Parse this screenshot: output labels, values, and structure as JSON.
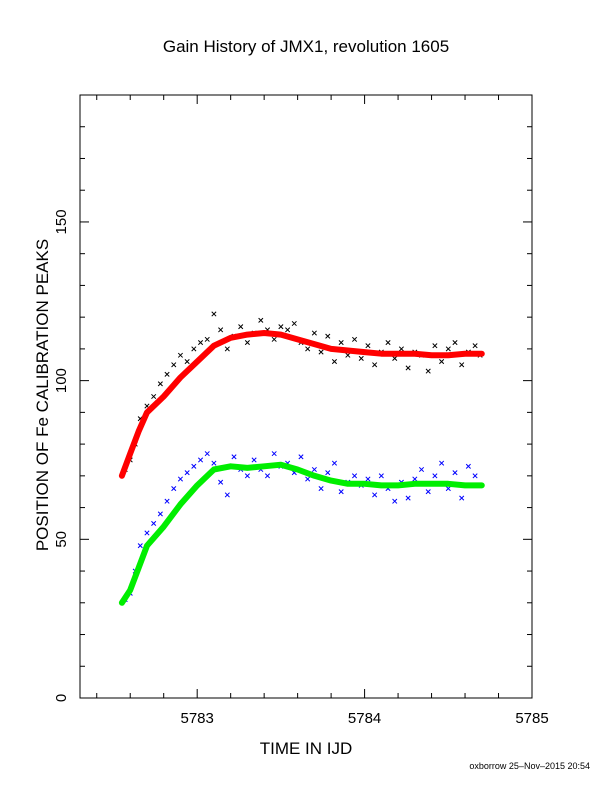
{
  "chart_data": {
    "type": "scatter",
    "title": "Gain History of JMX1, revolution 1605",
    "xlabel": "TIME IN IJD",
    "ylabel": "POSITION OF Fe CALIBRATION PEAKS",
    "xlim": [
      5782.3,
      5785.0
    ],
    "ylim": [
      0,
      190
    ],
    "x_ticks": [
      5783,
      5784,
      5785
    ],
    "x_tick_labels": [
      "5783",
      "5784",
      "5785"
    ],
    "y_ticks": [
      0,
      50,
      100,
      150
    ],
    "y_tick_labels": [
      "0",
      "50",
      "100",
      "150"
    ],
    "grid": false,
    "legend": "none",
    "footer": "oxborrow 25–Nov–2015 20:54",
    "series": [
      {
        "marker": "x",
        "color": "#000000",
        "x": [
          5782.57,
          5782.6,
          5782.63,
          5782.66,
          5782.7,
          5782.74,
          5782.78,
          5782.82,
          5782.86,
          5782.9,
          5782.94,
          5782.98,
          5783.02,
          5783.06,
          5783.1,
          5783.14,
          5783.18,
          5783.22,
          5783.26,
          5783.3,
          5783.34,
          5783.38,
          5783.42,
          5783.46,
          5783.5,
          5783.54,
          5783.58,
          5783.62,
          5783.66,
          5783.7,
          5783.74,
          5783.78,
          5783.82,
          5783.86,
          5783.9,
          5783.94,
          5783.98,
          5784.02,
          5784.06,
          5784.1,
          5784.14,
          5784.18,
          5784.22,
          5784.26,
          5784.3,
          5784.34,
          5784.38,
          5784.42,
          5784.46,
          5784.5,
          5784.54,
          5784.58,
          5784.62,
          5784.66,
          5784.69
        ],
        "y": [
          72,
          75,
          80,
          88,
          92,
          95,
          99,
          102,
          105,
          108,
          106,
          110,
          112,
          113,
          121,
          116,
          110,
          114,
          117,
          112,
          115,
          119,
          116,
          113,
          117,
          116,
          118,
          112,
          110,
          115,
          109,
          114,
          106,
          112,
          108,
          113,
          107,
          111,
          105,
          109,
          112,
          107,
          110,
          104,
          109,
          108,
          103,
          111,
          106,
          110,
          112,
          105,
          109,
          111,
          108
        ]
      },
      {
        "marker": "x",
        "color": "#0000ff",
        "x": [
          5782.57,
          5782.6,
          5782.63,
          5782.66,
          5782.7,
          5782.74,
          5782.78,
          5782.82,
          5782.86,
          5782.9,
          5782.94,
          5782.98,
          5783.02,
          5783.06,
          5783.1,
          5783.14,
          5783.18,
          5783.22,
          5783.26,
          5783.3,
          5783.34,
          5783.38,
          5783.42,
          5783.46,
          5783.5,
          5783.54,
          5783.58,
          5783.62,
          5783.66,
          5783.7,
          5783.74,
          5783.78,
          5783.82,
          5783.86,
          5783.9,
          5783.94,
          5783.98,
          5784.02,
          5784.06,
          5784.1,
          5784.14,
          5784.18,
          5784.22,
          5784.26,
          5784.3,
          5784.34,
          5784.38,
          5784.42,
          5784.46,
          5784.5,
          5784.54,
          5784.58,
          5784.62,
          5784.66,
          5784.69
        ],
        "y": [
          31,
          33,
          40,
          48,
          52,
          55,
          58,
          62,
          66,
          69,
          71,
          73,
          75,
          77,
          74,
          68,
          64,
          76,
          72,
          70,
          75,
          72,
          70,
          77,
          73,
          74,
          71,
          76,
          69,
          72,
          66,
          71,
          74,
          65,
          68,
          70,
          67,
          69,
          64,
          70,
          66,
          62,
          68,
          63,
          69,
          72,
          65,
          70,
          74,
          66,
          71,
          63,
          73,
          70,
          67
        ]
      },
      {
        "name": "",
        "type": "line",
        "color": "#ff0000",
        "x": [
          5782.55,
          5782.6,
          5782.65,
          5782.7,
          5782.8,
          5782.9,
          5783.0,
          5783.1,
          5783.2,
          5783.3,
          5783.4,
          5783.5,
          5783.6,
          5783.7,
          5783.8,
          5783.9,
          5784.0,
          5784.1,
          5784.2,
          5784.3,
          5784.4,
          5784.5,
          5784.6,
          5784.7
        ],
        "y": [
          70,
          77,
          84,
          90,
          95,
          101,
          106,
          111,
          113.5,
          114.5,
          115,
          114.5,
          113,
          111.5,
          110,
          109.5,
          109,
          108.5,
          108.5,
          108.5,
          108,
          108,
          108.5,
          108.5
        ]
      },
      {
        "name": "",
        "type": "line",
        "color": "#00ee00",
        "x": [
          5782.55,
          5782.6,
          5782.65,
          5782.7,
          5782.8,
          5782.9,
          5783.0,
          5783.1,
          5783.2,
          5783.3,
          5783.4,
          5783.5,
          5783.6,
          5783.7,
          5783.8,
          5783.9,
          5784.0,
          5784.1,
          5784.2,
          5784.3,
          5784.4,
          5784.5,
          5784.6,
          5784.7
        ],
        "y": [
          30,
          34,
          41,
          48,
          54,
          61,
          67,
          72,
          73,
          72.5,
          73,
          73.5,
          72,
          70,
          68.5,
          67.5,
          67.5,
          67,
          67,
          67.5,
          67.5,
          67.5,
          67,
          67
        ]
      }
    ]
  }
}
